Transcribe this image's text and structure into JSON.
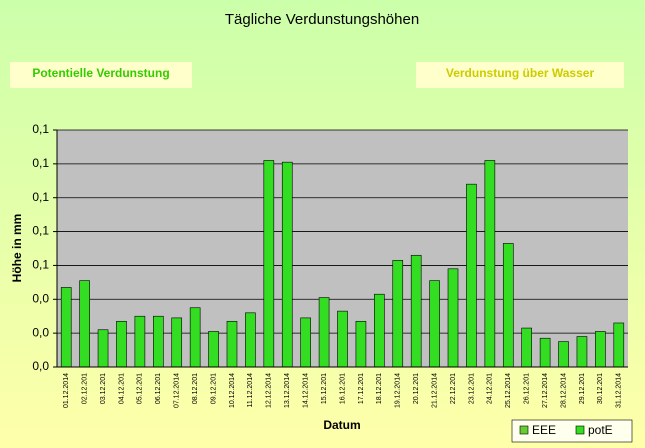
{
  "chart_data": {
    "type": "bar",
    "title": "Tägliche Verdunstungshöhen",
    "annotations": [
      "Potentielle Verdunstung",
      "Verdunstung über Wasser"
    ],
    "x_label": "Datum",
    "y_label": "Höhe in mm",
    "categories": [
      "01.12.2014",
      "02.12.201",
      "03.12.201",
      "04.12.201",
      "05.12.201",
      "06.12.201",
      "07.12.2014",
      "08.12.201",
      "09.12.201",
      "10.12.2014",
      "11.12.2014",
      "12.12.2014",
      "13.12.2014",
      "14.12.2014",
      "15.12.201",
      "16.12.201",
      "17.12.201",
      "18.12.201",
      "19.12.2014",
      "20.12.201",
      "21.12.2014",
      "22.12.201",
      "23.12.201",
      "24.12.201",
      "25.12.2014",
      "26.12.201",
      "27.12.2014",
      "28.12.2014",
      "29.12.201",
      "30.12.201",
      "31.12.2014"
    ],
    "series": [
      {
        "name": "EEE",
        "color": "#66cc33",
        "values": [
          null,
          null,
          null,
          null,
          null,
          null,
          null,
          null,
          null,
          null,
          null,
          null,
          null,
          null,
          null,
          null,
          null,
          null,
          null,
          null,
          null,
          null,
          null,
          null,
          null,
          null,
          null,
          null,
          null,
          null,
          null
        ]
      },
      {
        "name": "potE",
        "color": "#33dd22",
        "values": [
          0.047,
          0.051,
          0.022,
          0.027,
          0.03,
          0.03,
          0.029,
          0.035,
          0.021,
          0.027,
          0.032,
          0.122,
          0.121,
          0.029,
          0.041,
          0.033,
          0.027,
          0.043,
          0.063,
          0.066,
          0.051,
          0.058,
          0.108,
          0.122,
          0.073,
          0.023,
          0.017,
          0.015,
          0.018,
          0.021,
          0.026
        ]
      }
    ],
    "ylim": [
      0,
      0.14
    ],
    "yticks": [
      {
        "value": 0,
        "label": "0,0"
      },
      {
        "value": 0.02,
        "label": "0,0"
      },
      {
        "value": 0.04,
        "label": "0,0"
      },
      {
        "value": 0.06,
        "label": "0,1"
      },
      {
        "value": 0.08,
        "label": "0,1"
      },
      {
        "value": 0.1,
        "label": "0,1"
      },
      {
        "value": 0.12,
        "label": "0,1"
      },
      {
        "value": 0.14,
        "label": "0,1"
      }
    ],
    "grid": true,
    "legend": "bottom-right"
  }
}
